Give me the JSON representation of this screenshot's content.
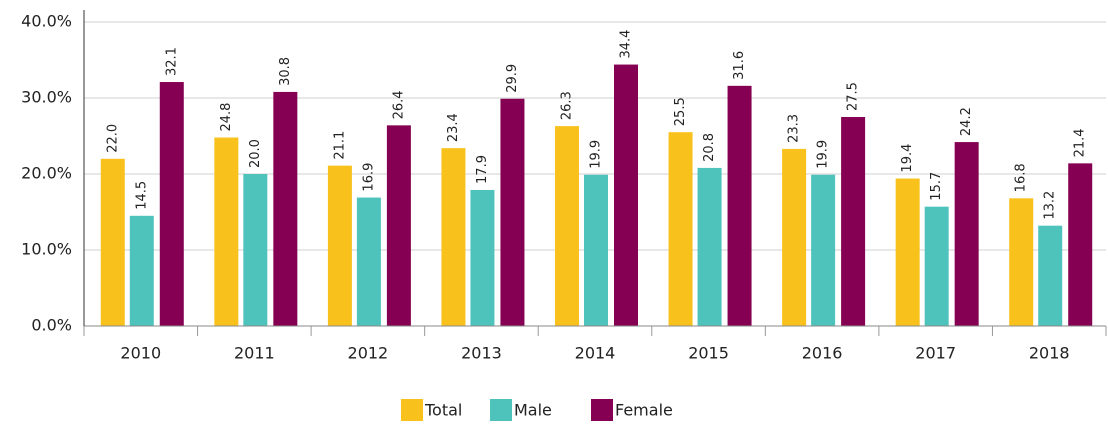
{
  "chart_data": {
    "type": "bar",
    "categories": [
      "2010",
      "2011",
      "2012",
      "2013",
      "2014",
      "2015",
      "2016",
      "2017",
      "2018"
    ],
    "series": [
      {
        "name": "Total",
        "color": "#f9c11c",
        "values": [
          22.0,
          24.8,
          21.1,
          23.4,
          26.3,
          25.5,
          23.3,
          19.4,
          16.8
        ],
        "value_labels": [
          "22.0",
          "24.8",
          "21.1",
          "23.4",
          "26.3",
          "25.5",
          "23.3",
          "19.4",
          "16.8"
        ]
      },
      {
        "name": "Male",
        "color": "#4ec3bc",
        "values": [
          14.5,
          20.0,
          16.9,
          17.9,
          19.9,
          20.8,
          19.9,
          15.7,
          13.2
        ],
        "value_labels": [
          "14.5",
          "20.0",
          "16.9",
          "17.9",
          "19.9",
          "20.8",
          "19.9",
          "15.7",
          "13.2"
        ]
      },
      {
        "name": "Female",
        "color": "#850052",
        "values": [
          32.1,
          30.8,
          26.4,
          29.9,
          34.4,
          31.6,
          27.5,
          24.2,
          21.4
        ],
        "value_labels": [
          "32.1",
          "30.8",
          "26.4",
          "29.9",
          "34.4",
          "31.6",
          "27.5",
          "24.2",
          "21.4"
        ]
      }
    ],
    "ylim": [
      0,
      40
    ],
    "yticks": [
      {
        "value": 0,
        "label": "0.0%"
      },
      {
        "value": 10,
        "label": "10.0%"
      },
      {
        "value": 20,
        "label": "20.0%"
      },
      {
        "value": 30,
        "label": "30.0%"
      },
      {
        "value": 40,
        "label": "40.0%"
      }
    ],
    "grid": true,
    "legend": "bottom"
  }
}
